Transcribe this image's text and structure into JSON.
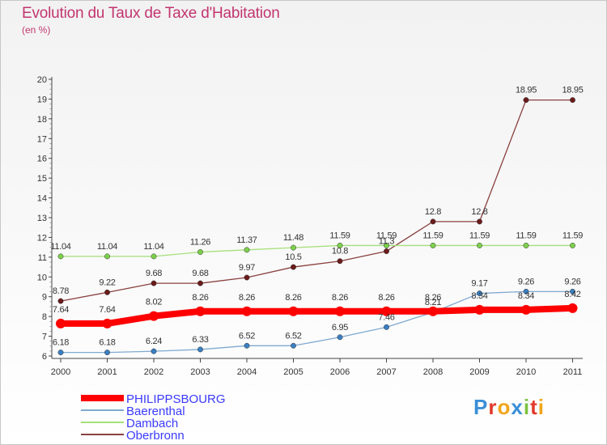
{
  "title": "Evolution du Taux de Taxe d'Habitation",
  "subtitle": "(en %)",
  "logo": "Proxiti",
  "chart_data": {
    "type": "line",
    "title": "Evolution du Taux de Taxe d'Habitation",
    "ylabel": "(en %)",
    "xlabel": "",
    "ylim": [
      6,
      20
    ],
    "yticks": [
      "6",
      "7",
      "8",
      "9",
      "10",
      "11",
      "12",
      "13",
      "14",
      "15",
      "16",
      "17",
      "18",
      "19",
      "20"
    ],
    "grid": false,
    "legend": "bottom-left",
    "categories": [
      "2000",
      "2001",
      "2002",
      "2003",
      "2004",
      "2005",
      "2006",
      "2007",
      "2008",
      "2009",
      "2010",
      "2011"
    ],
    "series": [
      {
        "name": "PHILIPPSBOURG",
        "color": "#ff0000",
        "marker": "#ff0000",
        "values": [
          7.64,
          7.64,
          8.02,
          8.26,
          8.26,
          8.26,
          8.26,
          8.26,
          8.26,
          8.34,
          8.34,
          8.42
        ],
        "labels": [
          "7.64",
          "7.64",
          "8.02",
          "8.26",
          "8.26",
          "8.26",
          "8.26",
          "8.26",
          "8.26",
          "8.34",
          "8.34",
          "8.42"
        ]
      },
      {
        "name": "Baerenthal",
        "color": "#7fa9d0",
        "marker": "#3a7fc1",
        "values": [
          6.18,
          6.18,
          6.24,
          6.33,
          6.52,
          6.52,
          6.95,
          7.46,
          8.21,
          9.17,
          9.26,
          9.26
        ],
        "labels": [
          "6.18",
          "6.18",
          "6.24",
          "6.33",
          "6.52",
          "6.52",
          "6.95",
          "7.46",
          "8.21",
          "9.17",
          "9.26",
          "9.26"
        ]
      },
      {
        "name": "Dambach",
        "color": "#a6e07a",
        "marker": "#7dd04c",
        "values": [
          11.04,
          11.04,
          11.04,
          11.26,
          11.37,
          11.48,
          11.59,
          11.59,
          11.59,
          11.59,
          11.59,
          11.59
        ],
        "labels": [
          "11.04",
          "11.04",
          "11.04",
          "11.26",
          "11.37",
          "11.48",
          "11.59",
          "11.59",
          "11.59",
          "11.59",
          "11.59",
          "11.59"
        ]
      },
      {
        "name": "Oberbronn",
        "color": "#8a4040",
        "marker": "#6b1b1b",
        "values": [
          8.78,
          9.22,
          9.68,
          9.68,
          9.97,
          10.5,
          10.8,
          11.3,
          12.8,
          12.8,
          18.95,
          18.95
        ],
        "labels": [
          "8.78",
          "9.22",
          "9.68",
          "9.68",
          "9.97",
          "10.5",
          "10.8",
          "11.3",
          "12.8",
          "12.8",
          "18.95",
          "18.95"
        ]
      }
    ]
  }
}
